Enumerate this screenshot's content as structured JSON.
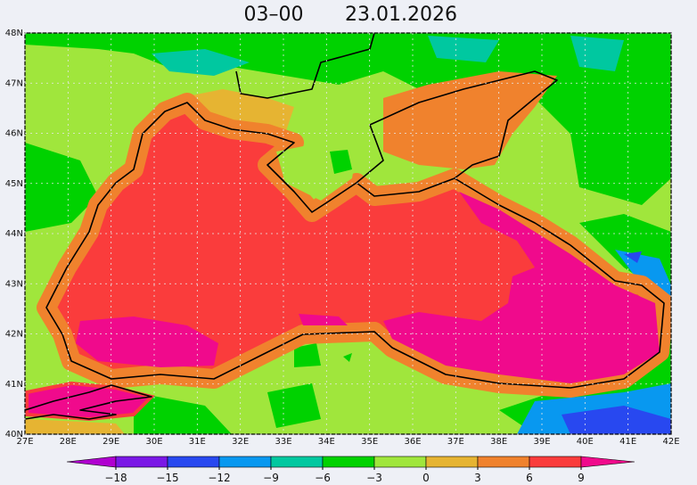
{
  "title": {
    "time": "03–00",
    "date": "23.01.2026"
  },
  "map": {
    "lon_range": [
      27,
      42
    ],
    "lat_range": [
      40,
      48
    ],
    "grid": true,
    "lon_ticks": [
      {
        "value": 27,
        "label": "27E"
      },
      {
        "value": 28,
        "label": "28E"
      },
      {
        "value": 29,
        "label": "29E"
      },
      {
        "value": 30,
        "label": "30E"
      },
      {
        "value": 31,
        "label": "31E"
      },
      {
        "value": 32,
        "label": "32E"
      },
      {
        "value": 33,
        "label": "33E"
      },
      {
        "value": 34,
        "label": "34E"
      },
      {
        "value": 35,
        "label": "35E"
      },
      {
        "value": 36,
        "label": "36E"
      },
      {
        "value": 37,
        "label": "37E"
      },
      {
        "value": 38,
        "label": "38E"
      },
      {
        "value": 39,
        "label": "39E"
      },
      {
        "value": 40,
        "label": "40E"
      },
      {
        "value": 41,
        "label": "41E"
      },
      {
        "value": 42,
        "label": "42E"
      }
    ],
    "lat_ticks": [
      {
        "value": 40,
        "label": "40N"
      },
      {
        "value": 41,
        "label": "41N"
      },
      {
        "value": 42,
        "label": "42N"
      },
      {
        "value": 43,
        "label": "43N"
      },
      {
        "value": 44,
        "label": "44N"
      },
      {
        "value": 45,
        "label": "45N"
      },
      {
        "value": 46,
        "label": "46N"
      },
      {
        "value": 47,
        "label": "47N"
      },
      {
        "value": 48,
        "label": "48N"
      }
    ]
  },
  "colorbar": {
    "ticks": [
      {
        "value": -18,
        "label": "−18"
      },
      {
        "value": -15,
        "label": "−15"
      },
      {
        "value": -12,
        "label": "−12"
      },
      {
        "value": -9,
        "label": "−9"
      },
      {
        "value": -6,
        "label": "−6"
      },
      {
        "value": -3,
        "label": "−3"
      },
      0,
      3,
      6,
      9
    ],
    "colors": [
      "#b000d0",
      "#7a18e6",
      "#2848f0",
      "#0898f0",
      "#00c8a0",
      "#00d200",
      "#a0e63c",
      "#e6b432",
      "#f0822d",
      "#fa3c3c",
      "#f00a8c"
    ]
  }
}
